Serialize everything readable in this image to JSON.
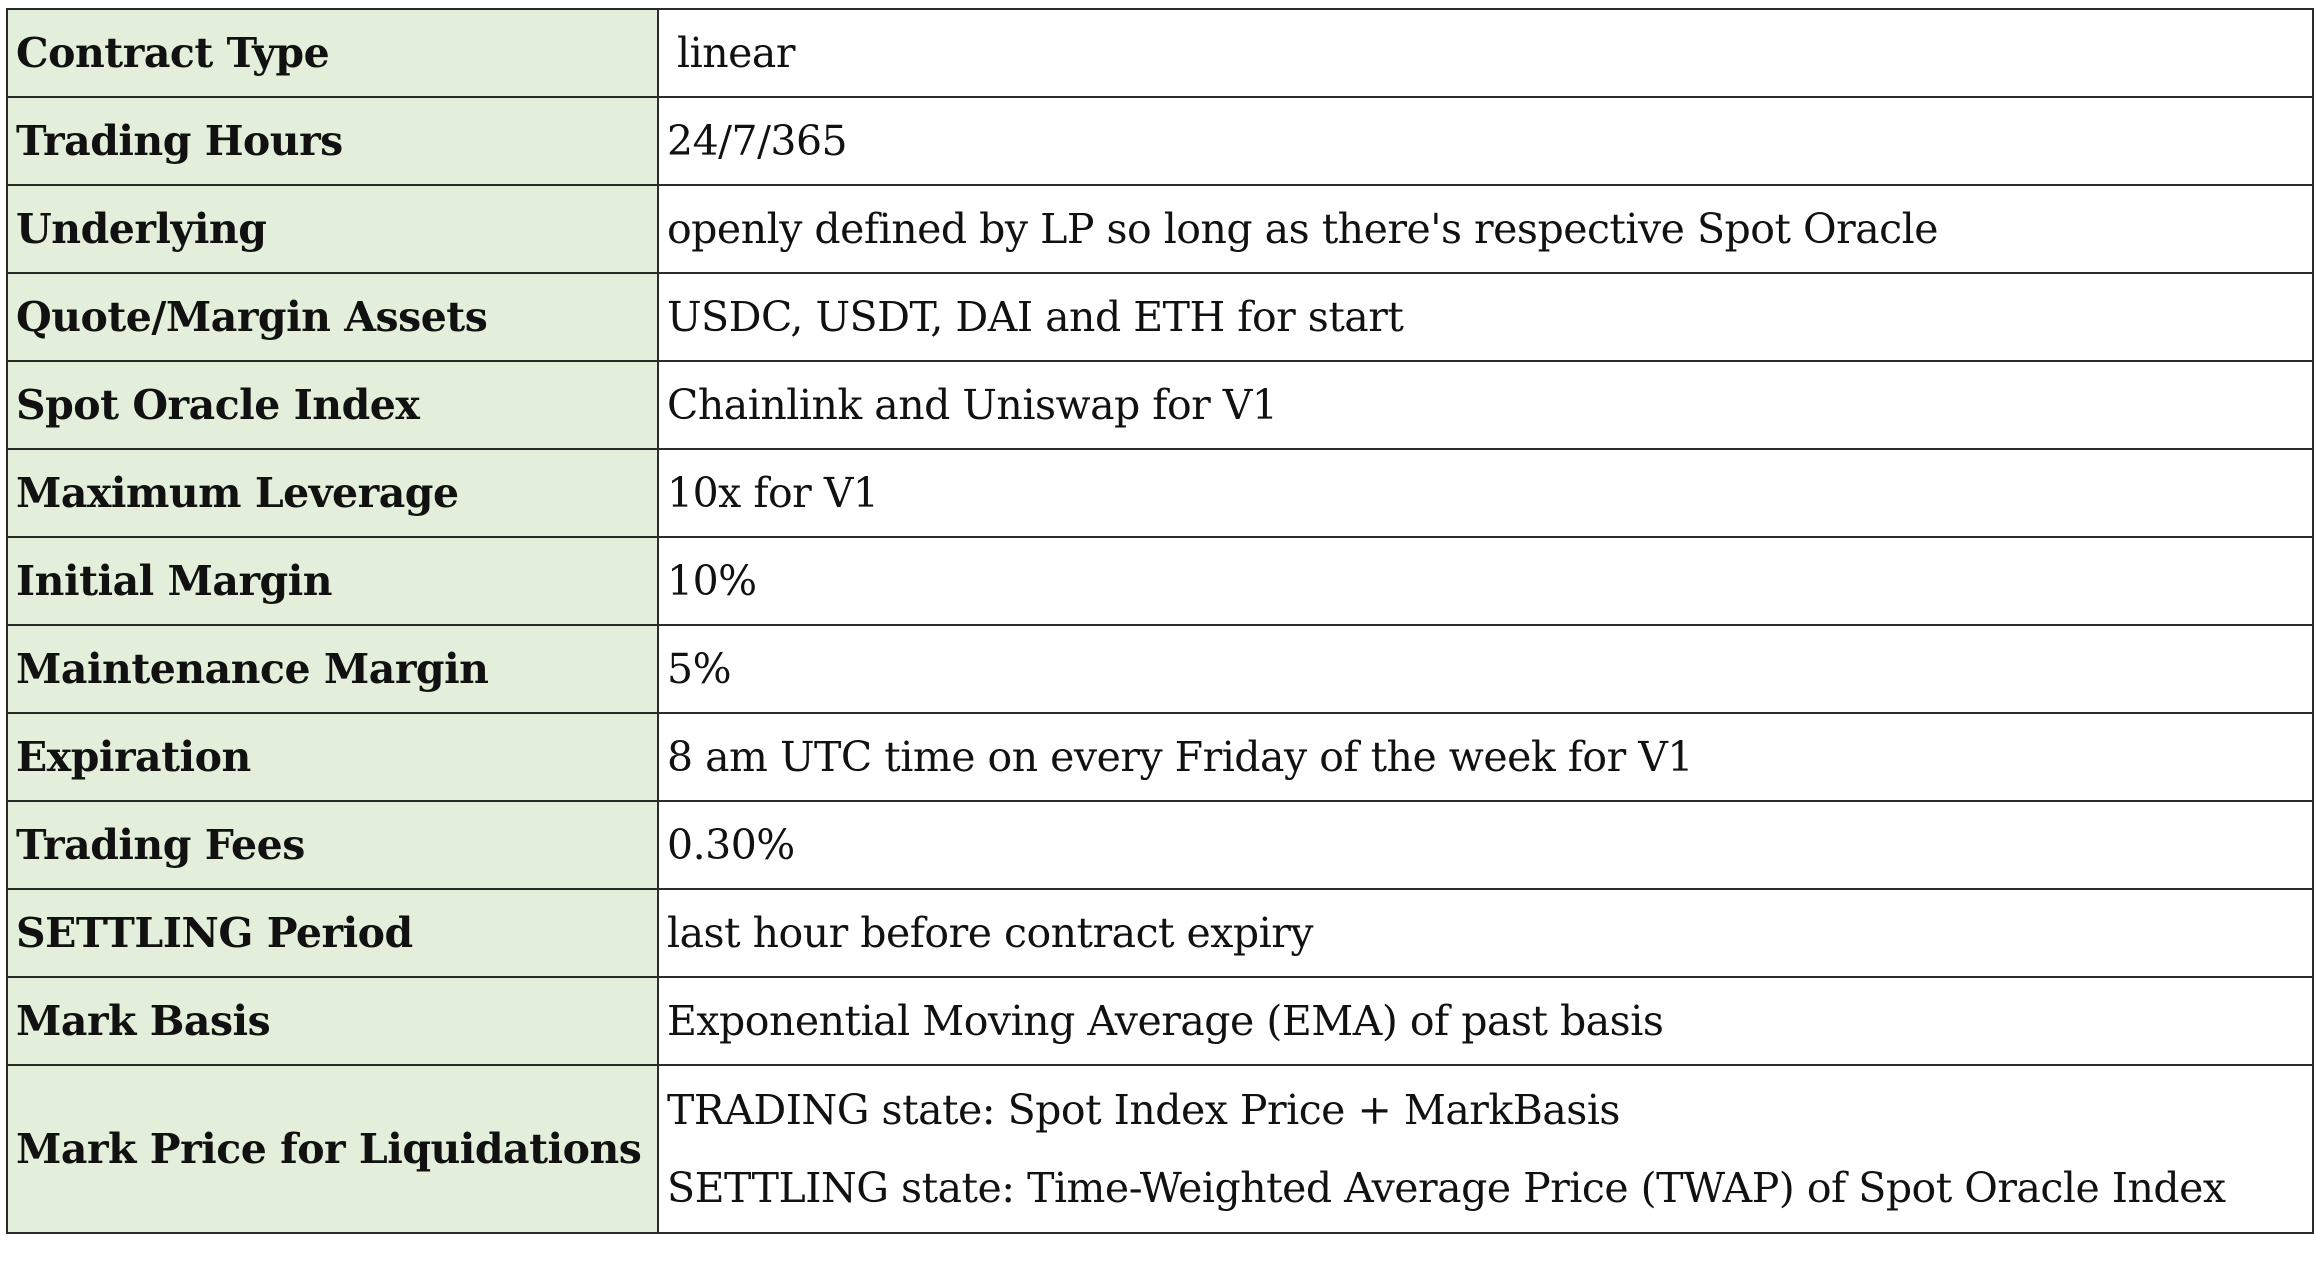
{
  "rows": [
    {
      "label": "Contract Type",
      "value": "linear"
    },
    {
      "label": "Trading Hours",
      "value": "24/7/365"
    },
    {
      "label": "Underlying",
      "value": "openly defined by LP so long as there's respective Spot Oracle"
    },
    {
      "label": "Quote/Margin Assets",
      "value": "USDC, USDT, DAI and ETH for start"
    },
    {
      "label": "Spot Oracle Index",
      "value": "Chainlink and Uniswap for V1"
    },
    {
      "label": "Maximum Leverage",
      "value": "10x for V1"
    },
    {
      "label": "Initial Margin",
      "value": "10%"
    },
    {
      "label": "Maintenance Margin",
      "value": "5%"
    },
    {
      "label": "Expiration",
      "value": "8 am UTC time on every Friday of the week for V1"
    },
    {
      "label": "Trading Fees",
      "value": "0.30%"
    },
    {
      "label": "SETTLING Period",
      "value": "last hour before contract expiry"
    },
    {
      "label": "Mark Basis",
      "value": "Exponential Moving Average (EMA) of past basis"
    },
    {
      "label": "Mark Price for Liquidations",
      "lines": [
        "TRADING state: Spot Index Price + MarkBasis",
        "SETTLING state:  Time-Weighted Average Price (TWAP) of Spot Oracle Index"
      ]
    }
  ],
  "colors": {
    "label_background": "#e3efdb",
    "border": "#2a2a2a"
  }
}
